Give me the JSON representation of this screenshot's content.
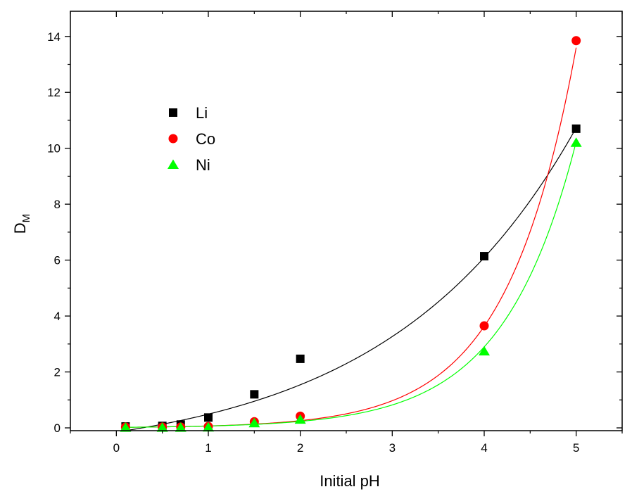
{
  "chart_data": {
    "type": "scatter",
    "xlabel": "Initial pH",
    "ylabel_main": "D",
    "ylabel_sub": "M",
    "xlim": [
      -0.5,
      5.5
    ],
    "ylim": [
      -0.1,
      14.9
    ],
    "x_ticks": [
      0,
      1,
      2,
      3,
      4,
      5
    ],
    "x_tick_labels": [
      "0",
      "1",
      "2",
      "3",
      "4",
      "5"
    ],
    "y_ticks": [
      0,
      2,
      4,
      6,
      8,
      10,
      12,
      14
    ],
    "y_tick_labels": [
      "0",
      "2",
      "4",
      "6",
      "8",
      "10",
      "12",
      "14"
    ],
    "grid": false,
    "legend_position": "upper-left",
    "series": [
      {
        "name": "Li",
        "marker": "square",
        "color": "#000000",
        "x": [
          0.1,
          0.5,
          0.7,
          1.0,
          1.5,
          2.0,
          4.0,
          5.0
        ],
        "y": [
          0.05,
          0.07,
          0.12,
          0.37,
          1.2,
          2.47,
          6.14,
          10.7
        ],
        "fit_color": "#000000",
        "fit": {
          "kind": "exp",
          "a": 1.0,
          "b": 0.495,
          "c": -1.15
        }
      },
      {
        "name": "Co",
        "marker": "circle",
        "color": "#ff0000",
        "x": [
          0.1,
          0.5,
          0.7,
          1.0,
          1.5,
          2.0,
          4.0,
          5.0
        ],
        "y": [
          0.03,
          0.03,
          0.03,
          0.05,
          0.22,
          0.42,
          3.65,
          13.85
        ],
        "fit_color": "#ff0000",
        "fit": {
          "kind": "exp",
          "a": 0.0185,
          "b": 1.32,
          "c": 0.0
        }
      },
      {
        "name": "Ni",
        "marker": "triangle",
        "color": "#00ff00",
        "x": [
          0.1,
          0.5,
          0.7,
          1.0,
          1.5,
          2.0,
          4.0,
          5.0
        ],
        "y": [
          0.01,
          0.01,
          0.01,
          0.02,
          0.17,
          0.3,
          2.74,
          10.2
        ],
        "fit_color": "#00ff00",
        "fit": {
          "kind": "exp",
          "a": 0.0186,
          "b": 1.262,
          "c": 0.0
        }
      }
    ]
  }
}
